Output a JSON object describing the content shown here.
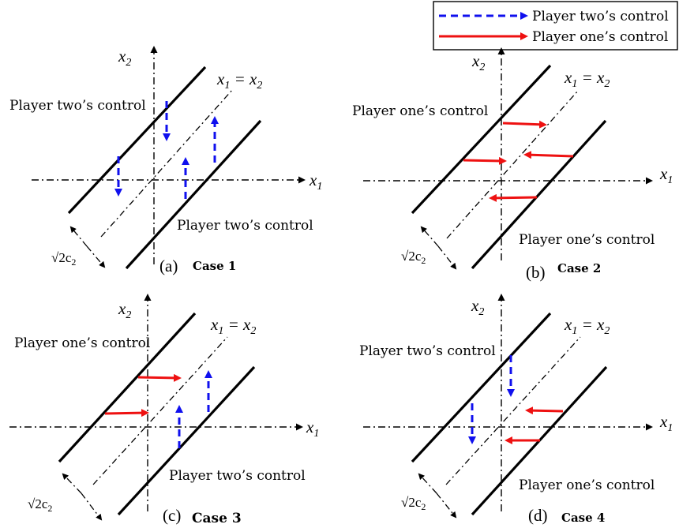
{
  "legend": {
    "blue_label": "Player two’s control",
    "red_label": "Player one’s control",
    "blue_color": "#1010ee",
    "red_color": "#ee1111"
  },
  "common": {
    "x1": "x",
    "x2": "x",
    "sub1": "1",
    "sub2": "2",
    "diag_eq": "= ",
    "sqrt_c2": "√2c",
    "c2_sub": "2"
  },
  "panels": {
    "a": {
      "tag": "(a)",
      "case_title": "Case 1",
      "label_upper": "Player two’s control",
      "label_lower": "Player two’s control"
    },
    "b": {
      "tag": "(b)",
      "case_title": "Case 2",
      "label_upper": "Player one’s control",
      "label_lower": "Player one’s control"
    },
    "c": {
      "tag": "(c)",
      "case_title": "Case 3",
      "label_upper": "Player one’s control",
      "label_lower": "Player two’s control"
    },
    "d": {
      "tag": "(d)",
      "case_title": "Case 4",
      "label_upper": "Player two’s control",
      "label_lower": "Player one’s control"
    }
  }
}
